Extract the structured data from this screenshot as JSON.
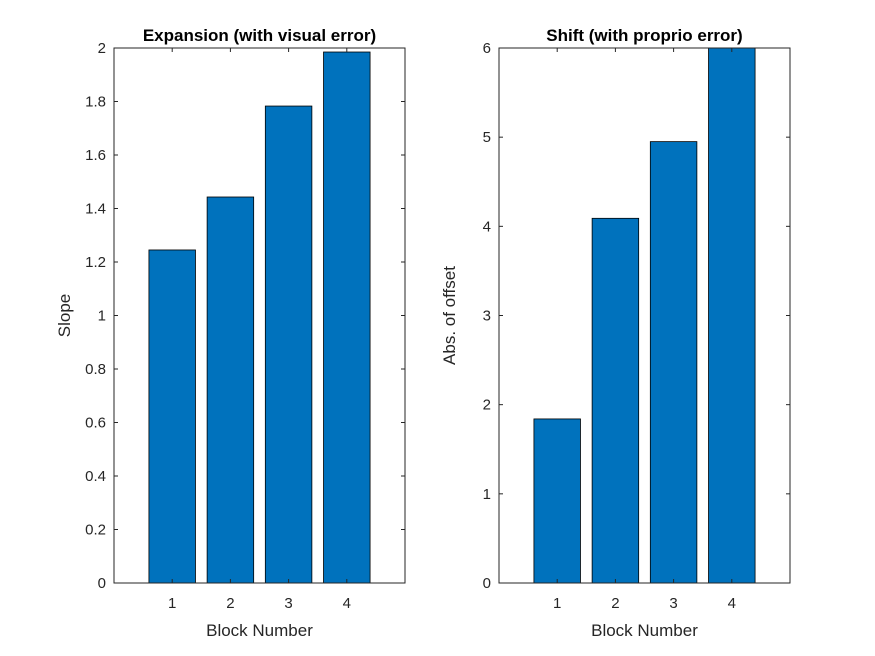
{
  "chart_data": [
    {
      "type": "bar",
      "title": "Expansion (with visual error)",
      "xlabel": "Block Number",
      "ylabel": "Slope",
      "categories": [
        "1",
        "2",
        "3",
        "4"
      ],
      "values": [
        1.245,
        1.443,
        1.783,
        1.985
      ],
      "xlim": [
        0,
        5
      ],
      "ylim": [
        0,
        2
      ],
      "yticks": [
        "0",
        "0.2",
        "0.4",
        "0.6",
        "0.8",
        "1",
        "1.2",
        "1.4",
        "1.6",
        "1.8",
        "2"
      ],
      "grid": false,
      "bar_color": "#0072BD"
    },
    {
      "type": "bar",
      "title": "Shift (with proprio error)",
      "xlabel": "Block Number",
      "ylabel": "Abs. of offset",
      "categories": [
        "1",
        "2",
        "3",
        "4"
      ],
      "values": [
        1.84,
        4.09,
        4.95,
        6.0
      ],
      "xlim": [
        0,
        5
      ],
      "ylim": [
        0,
        6
      ],
      "yticks": [
        "0",
        "1",
        "2",
        "3",
        "4",
        "5",
        "6"
      ],
      "grid": false,
      "bar_color": "#0072BD"
    }
  ]
}
